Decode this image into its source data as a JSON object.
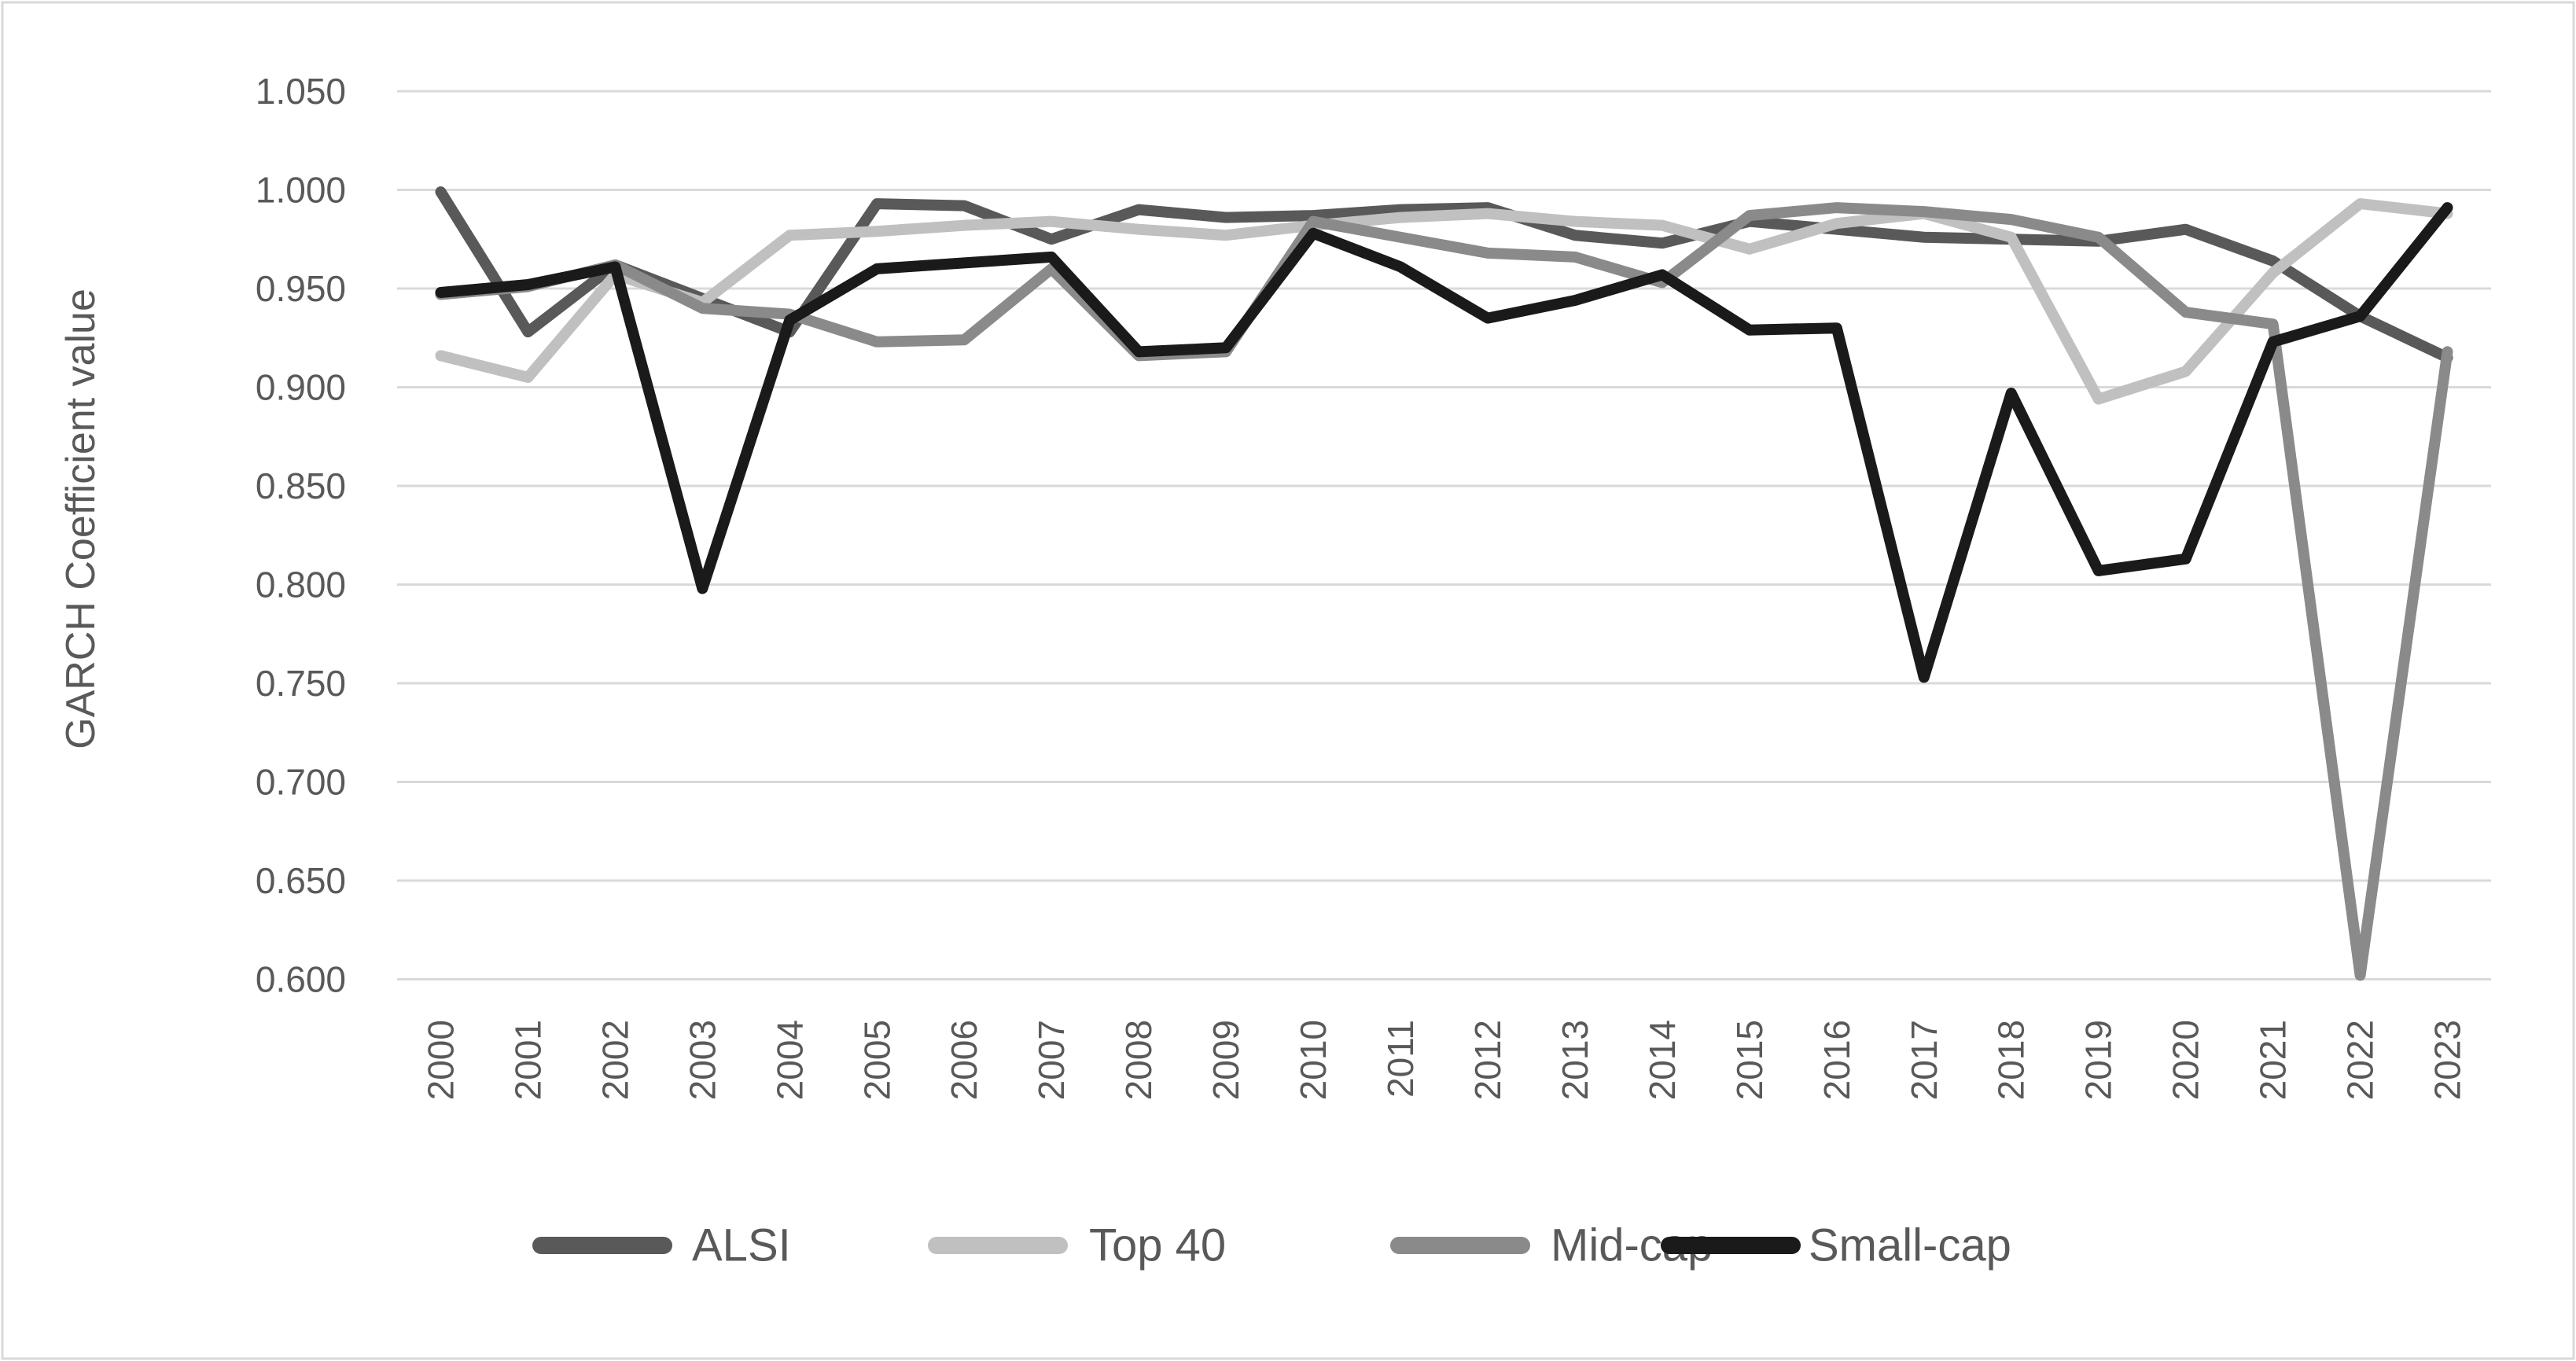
{
  "page": {
    "background": "#ffffff",
    "border_color": "#d9d9d9",
    "grid_color": "#d9d9d9",
    "text_color": "#595959"
  },
  "chart_data": {
    "type": "line",
    "title": "",
    "xlabel": "",
    "ylabel": "GARCH Coefficient value",
    "ylim": [
      0.6,
      1.05
    ],
    "ytick_interval": 0.05,
    "ytick_labels": [
      "1.050",
      "1.000",
      "0.950",
      "0.900",
      "0.850",
      "0.800",
      "0.750",
      "0.700",
      "0.650",
      "0.600"
    ],
    "grid": "horizontal",
    "legend_position": "bottom",
    "x_categories": [
      "2000",
      "2001",
      "2002",
      "2003",
      "2004",
      "2005",
      "2006",
      "2007",
      "2008",
      "2009",
      "2010",
      "2011",
      "2012",
      "2013",
      "2014",
      "2015",
      "2016",
      "2017",
      "2018",
      "2019",
      "2020",
      "2021",
      "2022",
      "2023"
    ],
    "series": [
      {
        "name": "ALSI",
        "color": "#595959",
        "values": [
          0.999,
          0.928,
          0.962,
          0.945,
          0.928,
          0.993,
          0.992,
          0.975,
          0.99,
          0.986,
          0.987,
          0.99,
          0.991,
          0.977,
          0.973,
          0.984,
          0.98,
          0.976,
          0.975,
          0.974,
          0.98,
          0.964,
          0.936,
          0.915
        ]
      },
      {
        "name": "Top 40",
        "color": "#c0c0c0",
        "values": [
          0.916,
          0.905,
          0.957,
          0.943,
          0.977,
          0.979,
          0.982,
          0.984,
          0.98,
          0.977,
          0.982,
          0.986,
          0.988,
          0.984,
          0.982,
          0.97,
          0.983,
          0.988,
          0.976,
          0.894,
          0.908,
          0.958,
          0.993,
          0.988
        ]
      },
      {
        "name": "Mid-cap",
        "color": "#8a8a8a",
        "values": [
          0.947,
          0.951,
          0.962,
          0.94,
          0.937,
          0.923,
          0.924,
          0.96,
          0.916,
          0.918,
          0.984,
          0.976,
          0.968,
          0.966,
          0.953,
          0.987,
          0.991,
          0.989,
          0.985,
          0.976,
          0.938,
          0.932,
          0.602,
          0.918
        ]
      },
      {
        "name": "Small-cap",
        "color": "#1a1a1a",
        "values": [
          0.948,
          0.952,
          0.961,
          0.798,
          0.934,
          0.96,
          0.963,
          0.966,
          0.918,
          0.92,
          0.978,
          0.961,
          0.935,
          0.944,
          0.957,
          0.929,
          0.93,
          0.753,
          0.897,
          0.807,
          0.813,
          0.923,
          0.936,
          0.991
        ]
      }
    ],
    "legend_items": [
      "ALSI",
      "Top 40",
      "Mid-cap",
      "Small-cap"
    ]
  }
}
